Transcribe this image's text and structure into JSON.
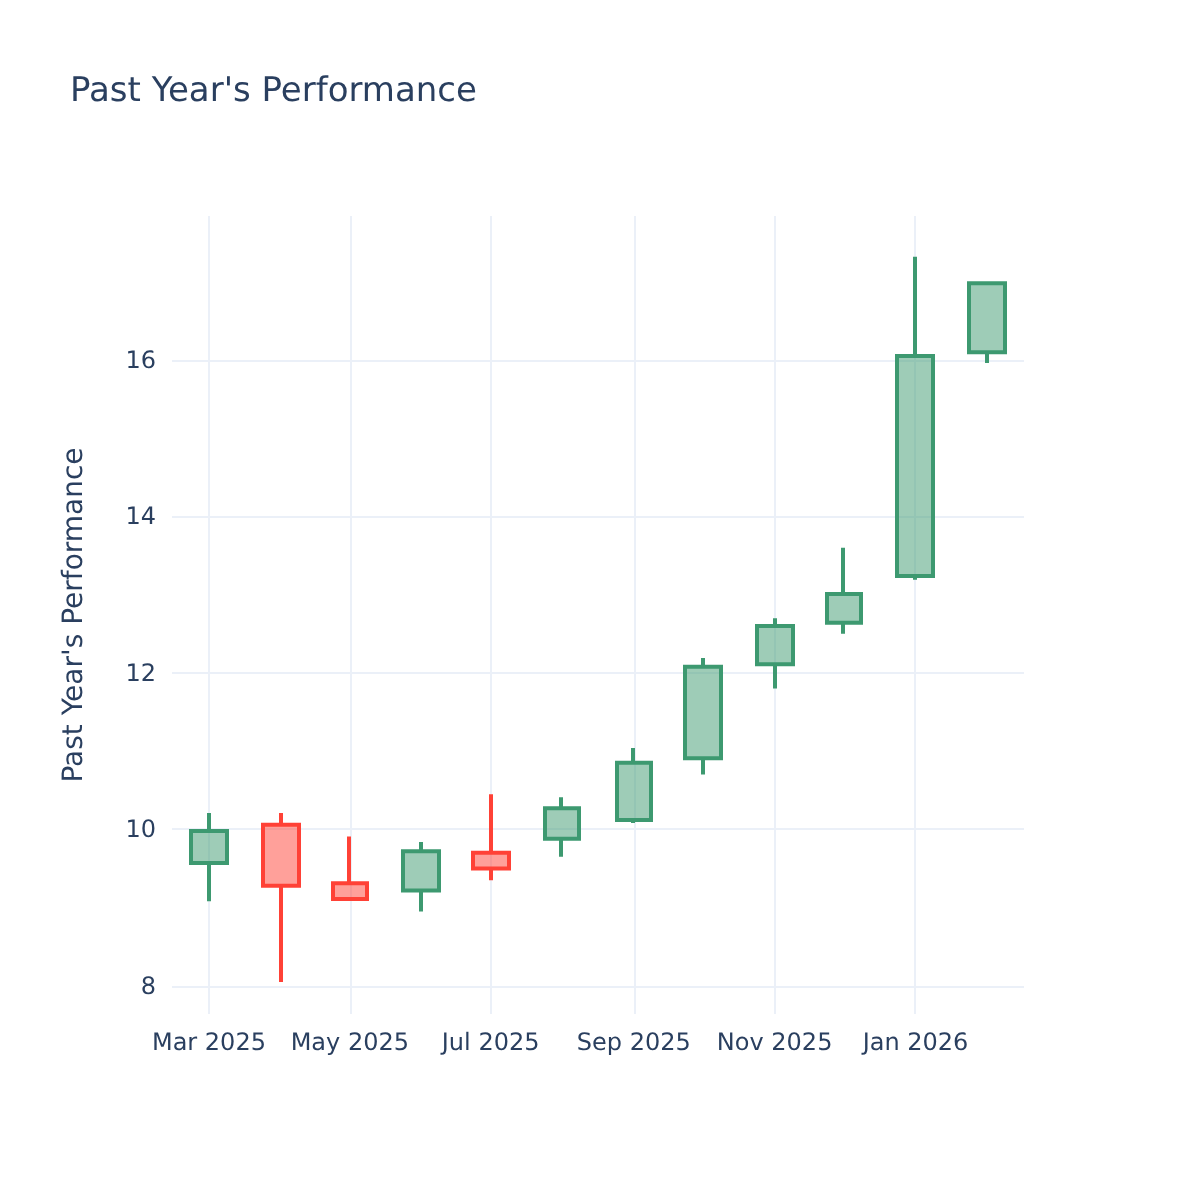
{
  "chart_data": {
    "type": "candlestick",
    "title": "Past Year's Performance",
    "ylabel": "Past Year's Performance",
    "x": [
      "2025-03-01",
      "2025-04-01",
      "2025-05-01",
      "2025-06-01",
      "2025-07-01",
      "2025-08-01",
      "2025-09-01",
      "2025-10-01",
      "2025-11-01",
      "2025-12-01",
      "2026-01-01",
      "2026-02-01"
    ],
    "ohlc": [
      [
        9.57,
        10.21,
        9.08,
        9.98
      ],
      [
        10.06,
        10.21,
        8.05,
        9.28
      ],
      [
        9.31,
        9.91,
        9.11,
        9.11
      ],
      [
        9.22,
        9.84,
        8.95,
        9.72
      ],
      [
        9.7,
        10.45,
        9.35,
        9.5
      ],
      [
        9.88,
        10.41,
        9.65,
        10.27
      ],
      [
        10.12,
        11.04,
        10.08,
        10.85
      ],
      [
        10.91,
        12.19,
        10.7,
        12.08
      ],
      [
        12.11,
        12.7,
        11.8,
        12.6
      ],
      [
        12.64,
        13.6,
        12.5,
        13.01
      ],
      [
        13.24,
        17.32,
        13.19,
        16.05
      ],
      [
        16.1,
        17.0,
        15.96,
        16.98
      ]
    ],
    "colors": [
      "#3d9970",
      "#ff4136",
      "#ff4136",
      "#3d9970",
      "#ff4136",
      "#3d9970",
      "#3d9970",
      "#3d9970",
      "#3d9970",
      "#3d9970",
      "#3d9970",
      "#3d9970"
    ],
    "xlim": [
      "2025-02-13",
      "2026-02-17"
    ],
    "xticks": [
      {
        "value": "2025-03-01",
        "label": "Mar 2025"
      },
      {
        "value": "2025-05-01",
        "label": "May 2025"
      },
      {
        "value": "2025-07-01",
        "label": "Jul 2025"
      },
      {
        "value": "2025-09-01",
        "label": "Sep 2025"
      },
      {
        "value": "2025-11-01",
        "label": "Nov 2025"
      },
      {
        "value": "2026-01-01",
        "label": "Jan 2026"
      }
    ],
    "ylim": [
      7.64,
      17.84
    ],
    "yticks": [
      8,
      10,
      12,
      14,
      16
    ],
    "grid": true
  }
}
